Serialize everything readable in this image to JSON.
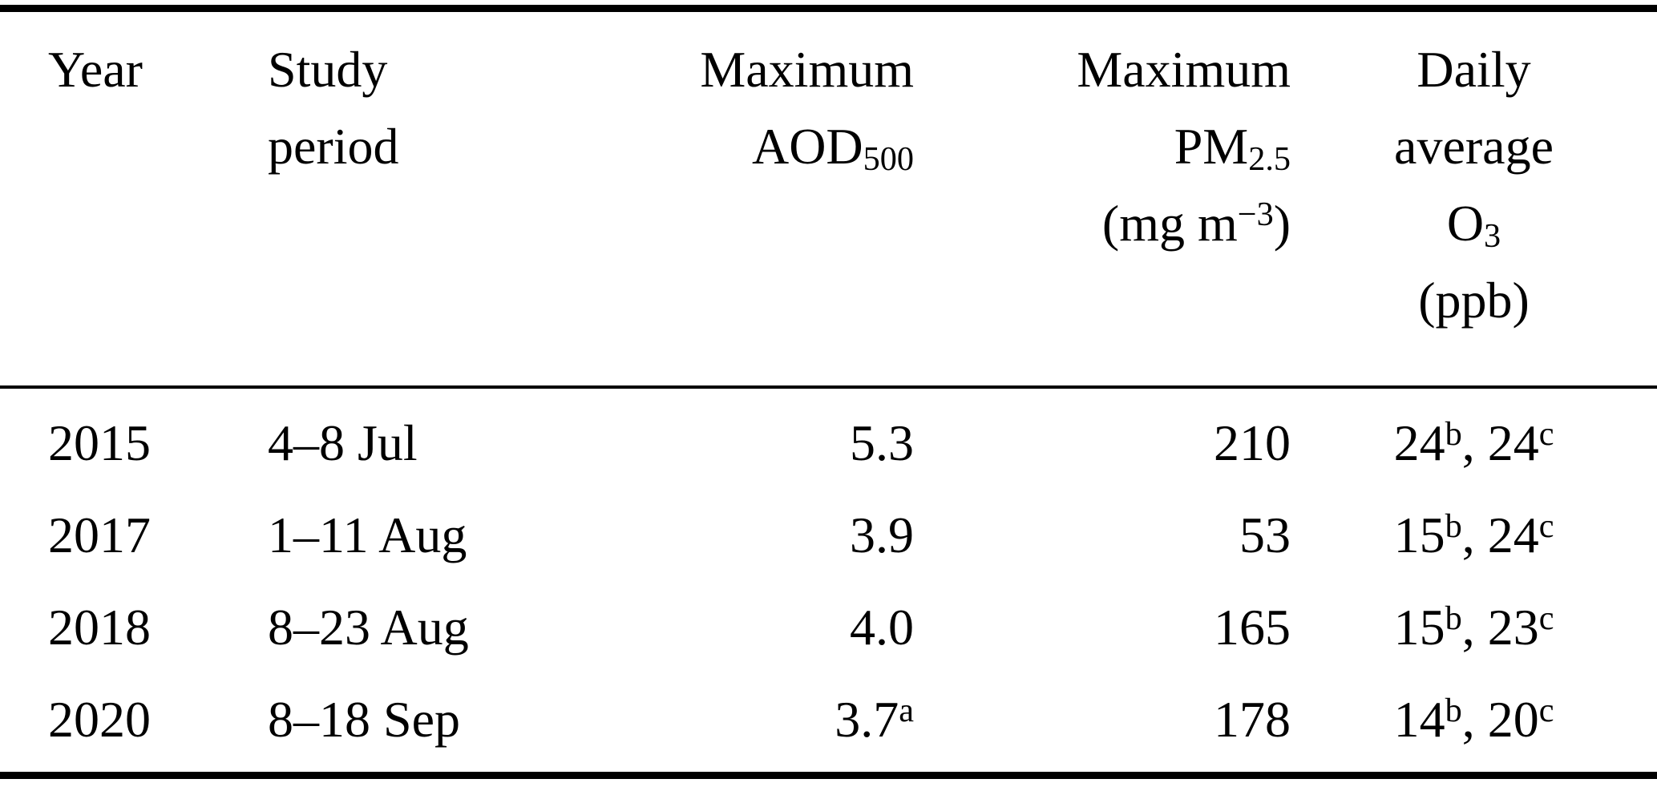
{
  "table": {
    "columns": [
      {
        "id": "year",
        "align": "left",
        "header": [
          {
            "t": "Year"
          }
        ]
      },
      {
        "id": "study_period",
        "align": "left",
        "header": [
          {
            "t": "Study"
          },
          {
            "br": true
          },
          {
            "t": "period"
          }
        ]
      },
      {
        "id": "max_aod500",
        "align": "right",
        "header": [
          {
            "t": "Maximum"
          },
          {
            "br": true
          },
          {
            "t": "AOD"
          },
          {
            "t": "500",
            "sub": true
          }
        ]
      },
      {
        "id": "max_pm25",
        "align": "right",
        "header": [
          {
            "t": "Maximum"
          },
          {
            "br": true
          },
          {
            "t": "PM"
          },
          {
            "t": "2.5",
            "sub": true
          },
          {
            "br": true
          },
          {
            "t": "(mg m"
          },
          {
            "t": "−3",
            "sup": true
          },
          {
            "t": ")"
          }
        ]
      },
      {
        "id": "daily_avg_o3",
        "align": "center",
        "header": [
          {
            "t": "Daily"
          },
          {
            "br": true
          },
          {
            "t": "average"
          },
          {
            "br": true
          },
          {
            "t": "O"
          },
          {
            "t": "3",
            "sub": true
          },
          {
            "br": true
          },
          {
            "t": "(ppb)"
          }
        ]
      }
    ],
    "rows": [
      {
        "cells": [
          [
            {
              "t": "2015"
            }
          ],
          [
            {
              "t": "4–8 Jul"
            }
          ],
          [
            {
              "t": "5.3"
            }
          ],
          [
            {
              "t": "210"
            }
          ],
          [
            {
              "t": "24"
            },
            {
              "t": "b",
              "sup": true
            },
            {
              "t": ", 24"
            },
            {
              "t": "c",
              "sup": true
            }
          ]
        ]
      },
      {
        "cells": [
          [
            {
              "t": "2017"
            }
          ],
          [
            {
              "t": "1–11 Aug"
            }
          ],
          [
            {
              "t": "3.9"
            }
          ],
          [
            {
              "t": "53"
            }
          ],
          [
            {
              "t": "15"
            },
            {
              "t": "b",
              "sup": true
            },
            {
              "t": ", 24"
            },
            {
              "t": "c",
              "sup": true
            }
          ]
        ]
      },
      {
        "cells": [
          [
            {
              "t": "2018"
            }
          ],
          [
            {
              "t": "8–23 Aug"
            }
          ],
          [
            {
              "t": "4.0"
            }
          ],
          [
            {
              "t": "165"
            }
          ],
          [
            {
              "t": "15"
            },
            {
              "t": "b",
              "sup": true
            },
            {
              "t": ", 23"
            },
            {
              "t": "c",
              "sup": true
            }
          ]
        ]
      },
      {
        "cells": [
          [
            {
              "t": "2020"
            }
          ],
          [
            {
              "t": "8–18 Sep"
            }
          ],
          [
            {
              "t": "3.7"
            },
            {
              "t": "a",
              "sup": true
            }
          ],
          [
            {
              "t": "178"
            }
          ],
          [
            {
              "t": "14"
            },
            {
              "t": "b",
              "sup": true
            },
            {
              "t": ", 20"
            },
            {
              "t": "c",
              "sup": true
            }
          ]
        ]
      }
    ]
  }
}
